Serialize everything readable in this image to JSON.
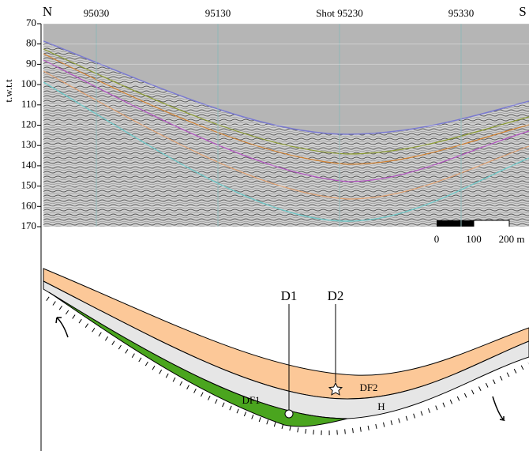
{
  "seismic": {
    "north": "N",
    "south": "S",
    "y_axis_label": "t.w.t.t",
    "y_ticks": [
      70,
      80,
      90,
      100,
      110,
      120,
      130,
      140,
      150,
      160,
      170
    ],
    "x_ticks": [
      "95030",
      "95130",
      "Shot 95230",
      "95330"
    ],
    "scale_bar": [
      "0",
      "100",
      "200 m"
    ]
  },
  "section": {
    "wells": [
      "D1",
      "D2"
    ],
    "units": [
      "DF1",
      "DF2",
      "H"
    ]
  }
}
